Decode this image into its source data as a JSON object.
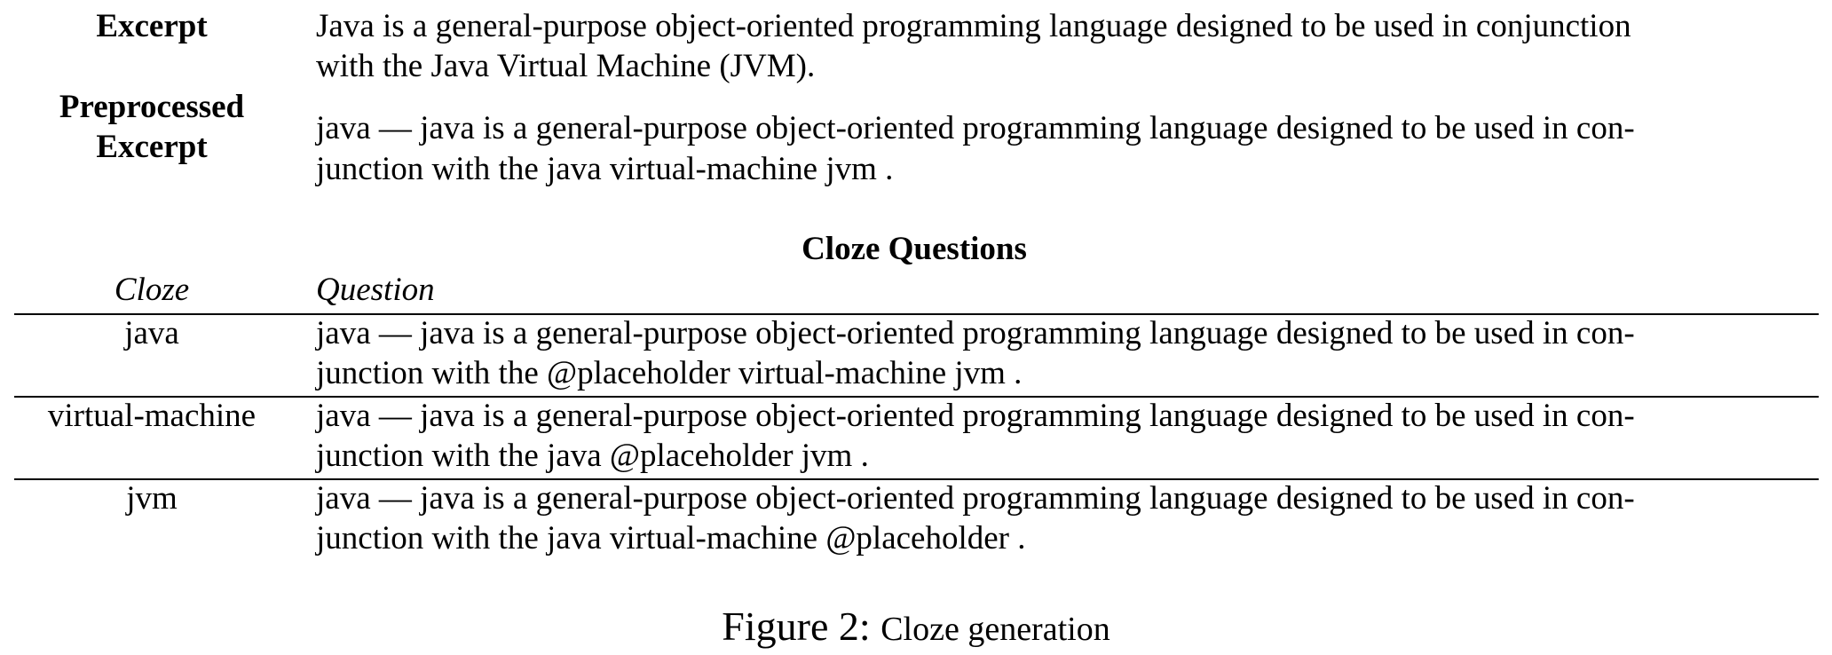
{
  "excerpt": {
    "label": "Excerpt",
    "line1": "Java is a general-purpose object-oriented programming language designed to be used in conjunction",
    "line2": "with the Java Virtual Machine (JVM)."
  },
  "preprocessed": {
    "label_line1": "Preprocessed",
    "label_line2": "Excerpt",
    "line1": "java — java is a general-purpose object-oriented programming language designed to be used in con-",
    "line2": "junction with the java virtual-machine jvm ."
  },
  "cloze_table": {
    "title": "Cloze Questions",
    "headers": {
      "cloze": "Cloze",
      "question": "Question"
    },
    "rows": [
      {
        "cloze": "java",
        "q_line1": "java — java is a general-purpose object-oriented programming language designed to be used in con-",
        "q_line2": "junction with the @placeholder virtual-machine jvm ."
      },
      {
        "cloze": "virtual-machine",
        "q_line1": "java — java is a general-purpose object-oriented programming language designed to be used in con-",
        "q_line2": "junction with the java @placeholder jvm ."
      },
      {
        "cloze": "jvm",
        "q_line1": "java — java is a general-purpose object-oriented programming language designed to be used in con-",
        "q_line2": "junction with the java virtual-machine @placeholder ."
      }
    ]
  },
  "caption": {
    "figure_label": "Figure 2:",
    "text": "Cloze generation"
  }
}
